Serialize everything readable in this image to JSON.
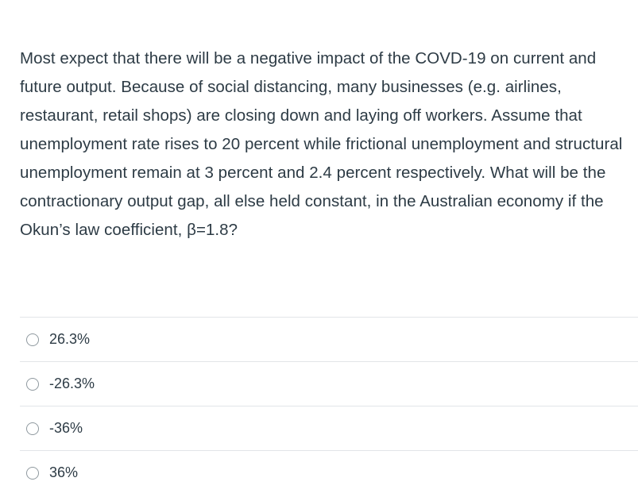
{
  "question": {
    "text": "Most expect that there will be a negative impact of the COVD-19 on current and future output. Because of social distancing, many businesses (e.g. airlines, restaurant, retail shops) are closing down and laying off workers. Assume that unemployment rate rises to 20 percent while frictional unemployment and structural unemployment remain at 3 percent and 2.4 percent respectively. What will be the contractionary output gap, all else held constant, in the Australian economy if the Okun’s law coefficient, β=1.8?"
  },
  "answers": [
    {
      "label": "26.3%",
      "selected": false
    },
    {
      "label": "-26.3%",
      "selected": false
    },
    {
      "label": "-36%",
      "selected": false
    },
    {
      "label": "36%",
      "selected": false
    }
  ],
  "colors": {
    "text": "#2d3b45",
    "divider": "#e2e5e8",
    "radio_border": "#8f999f"
  }
}
